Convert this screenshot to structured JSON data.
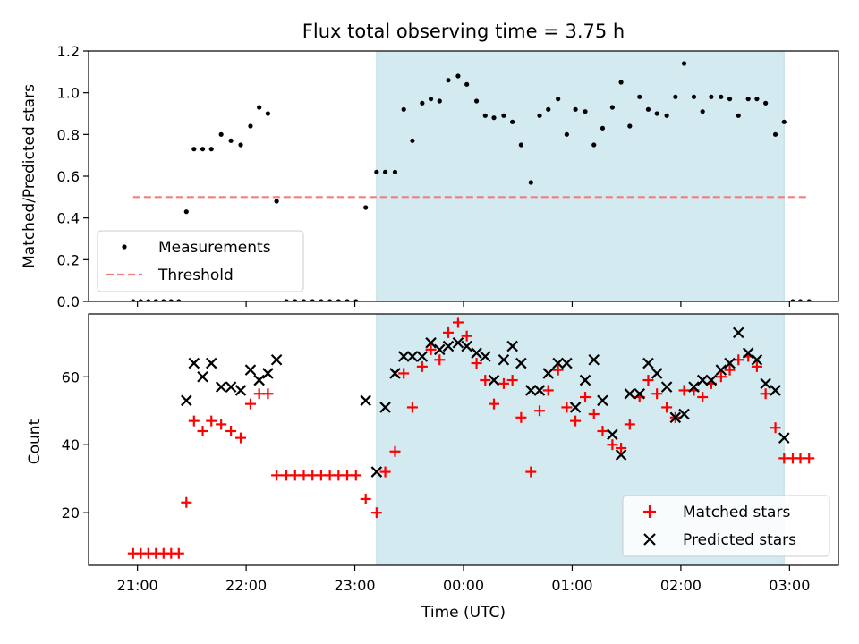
{
  "figure": {
    "title": "Flux total observing time = 3.75 h",
    "xlabel": "Time (UTC)",
    "xticks": [
      "21:00",
      "22:00",
      "23:00",
      "00:00",
      "01:00",
      "02:00",
      "03:00"
    ],
    "xtick_hours": [
      21,
      22,
      23,
      24,
      25,
      26,
      27
    ],
    "xlim": [
      20.55,
      27.45
    ],
    "shaded_span": [
      23.2,
      26.95
    ],
    "shade_color": "#d4eaf1"
  },
  "chart_data": [
    {
      "type": "scatter",
      "ylabel": "Matched/Predicted stars",
      "ylim": [
        0,
        1.2
      ],
      "yticks": [
        "0.0",
        "0.2",
        "0.4",
        "0.6",
        "0.8",
        "1.0",
        "1.2"
      ],
      "legend_position": "lower-left",
      "series": [
        {
          "name": "Measurements",
          "marker": "dot",
          "color": "#000000",
          "x": [
            20.96,
            21.03,
            21.1,
            21.17,
            21.24,
            21.31,
            21.38,
            21.45,
            21.52,
            21.6,
            21.68,
            21.77,
            21.86,
            21.95,
            22.04,
            22.12,
            22.2,
            22.28,
            22.37,
            22.45,
            22.53,
            22.61,
            22.69,
            22.77,
            22.85,
            22.93,
            23.01,
            23.1,
            23.2,
            23.28,
            23.37,
            23.45,
            23.53,
            23.62,
            23.7,
            23.78,
            23.86,
            23.95,
            24.03,
            24.12,
            24.2,
            24.28,
            24.37,
            24.45,
            24.53,
            24.62,
            24.7,
            24.78,
            24.87,
            24.95,
            25.03,
            25.12,
            25.2,
            25.28,
            25.37,
            25.45,
            25.53,
            25.62,
            25.7,
            25.78,
            25.87,
            25.95,
            26.03,
            26.12,
            26.2,
            26.28,
            26.37,
            26.45,
            26.53,
            26.62,
            26.7,
            26.78,
            26.87,
            26.95,
            27.03,
            27.1,
            27.18
          ],
          "y": [
            0.0,
            0.0,
            0.0,
            0.0,
            0.0,
            0.0,
            0.0,
            0.43,
            0.73,
            0.73,
            0.73,
            0.8,
            0.77,
            0.75,
            0.84,
            0.93,
            0.9,
            0.48,
            0.0,
            0.0,
            0.0,
            0.0,
            0.0,
            0.0,
            0.0,
            0.0,
            0.0,
            0.45,
            0.62,
            0.62,
            0.62,
            0.92,
            0.77,
            0.95,
            0.97,
            0.96,
            1.06,
            1.08,
            1.04,
            0.96,
            0.89,
            0.88,
            0.89,
            0.86,
            0.75,
            0.57,
            0.89,
            0.92,
            0.97,
            0.8,
            0.92,
            0.91,
            0.75,
            0.83,
            0.93,
            1.05,
            0.84,
            0.98,
            0.92,
            0.9,
            0.89,
            0.98,
            1.14,
            0.98,
            0.91,
            0.98,
            0.98,
            0.97,
            0.89,
            0.97,
            0.97,
            0.95,
            0.8,
            0.86,
            0.0,
            0.0,
            0.0
          ]
        },
        {
          "name": "Threshold",
          "type": "line",
          "dashed": true,
          "color": "#f08080",
          "x": [
            20.96,
            27.18
          ],
          "y": [
            0.5,
            0.5
          ]
        }
      ]
    },
    {
      "type": "scatter",
      "ylabel": "Count",
      "ylim": [
        4.5,
        78.5
      ],
      "yticks": [
        "20",
        "40",
        "60"
      ],
      "ytick_values": [
        20,
        40,
        60
      ],
      "legend_position": "lower-right",
      "series": [
        {
          "name": "Matched stars",
          "marker": "plus",
          "color": "#ff0000",
          "x": [
            20.96,
            21.03,
            21.1,
            21.17,
            21.24,
            21.31,
            21.38,
            21.45,
            21.52,
            21.6,
            21.68,
            21.77,
            21.86,
            21.95,
            22.04,
            22.12,
            22.2,
            22.28,
            22.37,
            22.45,
            22.53,
            22.61,
            22.69,
            22.77,
            22.85,
            22.93,
            23.01,
            23.1,
            23.2,
            23.28,
            23.37,
            23.45,
            23.53,
            23.62,
            23.7,
            23.78,
            23.86,
            23.95,
            24.03,
            24.12,
            24.2,
            24.28,
            24.37,
            24.45,
            24.53,
            24.62,
            24.7,
            24.78,
            24.87,
            24.95,
            25.03,
            25.12,
            25.2,
            25.28,
            25.37,
            25.45,
            25.53,
            25.62,
            25.7,
            25.78,
            25.87,
            25.95,
            26.03,
            26.12,
            26.2,
            26.28,
            26.37,
            26.45,
            26.53,
            26.62,
            26.7,
            26.78,
            26.87,
            26.95,
            27.03,
            27.1,
            27.18
          ],
          "y": [
            8,
            8,
            8,
            8,
            8,
            8,
            8,
            23,
            47,
            44,
            47,
            46,
            44,
            42,
            52,
            55,
            55,
            31,
            31,
            31,
            31,
            31,
            31,
            31,
            31,
            31,
            31,
            24,
            20,
            32,
            38,
            61,
            51,
            63,
            68,
            65,
            73,
            76,
            72,
            64,
            59,
            52,
            58,
            59,
            48,
            32,
            50,
            56,
            62,
            51,
            47,
            54,
            49,
            44,
            40,
            39,
            46,
            54,
            59,
            55,
            51,
            48,
            56,
            56,
            54,
            58,
            60,
            62,
            65,
            66,
            63,
            55,
            45,
            36,
            36,
            36,
            36
          ]
        },
        {
          "name": "Predicted stars",
          "marker": "x",
          "color": "#000000",
          "x": [
            21.45,
            21.52,
            21.6,
            21.68,
            21.77,
            21.86,
            21.95,
            22.04,
            22.12,
            22.2,
            22.28,
            23.1,
            23.2,
            23.28,
            23.37,
            23.45,
            23.53,
            23.62,
            23.7,
            23.78,
            23.86,
            23.95,
            24.03,
            24.12,
            24.2,
            24.28,
            24.37,
            24.45,
            24.53,
            24.62,
            24.7,
            24.78,
            24.87,
            24.95,
            25.03,
            25.12,
            25.2,
            25.28,
            25.37,
            25.45,
            25.53,
            25.62,
            25.7,
            25.78,
            25.87,
            25.95,
            26.03,
            26.12,
            26.2,
            26.28,
            26.37,
            26.45,
            26.53,
            26.62,
            26.7,
            26.78,
            26.87,
            26.95
          ],
          "y": [
            53,
            64,
            60,
            64,
            57,
            57,
            56,
            62,
            59,
            61,
            65,
            53,
            32,
            51,
            61,
            66,
            66,
            66,
            70,
            68,
            69,
            70,
            69,
            67,
            66,
            59,
            65,
            69,
            64,
            56,
            56,
            61,
            64,
            64,
            51,
            59,
            65,
            53,
            43,
            37,
            55,
            55,
            64,
            61,
            57,
            48,
            49,
            57,
            59,
            59,
            62,
            64,
            73,
            67,
            65,
            58,
            56,
            42
          ]
        }
      ]
    }
  ]
}
